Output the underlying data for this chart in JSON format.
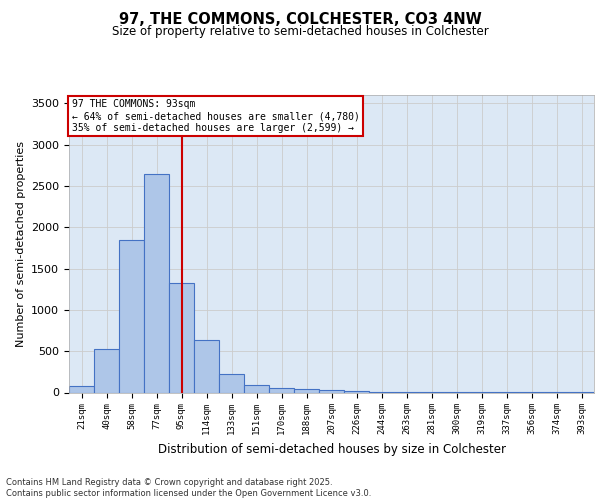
{
  "title_line1": "97, THE COMMONS, COLCHESTER, CO3 4NW",
  "title_line2": "Size of property relative to semi-detached houses in Colchester",
  "xlabel": "Distribution of semi-detached houses by size in Colchester",
  "ylabel": "Number of semi-detached properties",
  "categories": [
    "21sqm",
    "40sqm",
    "58sqm",
    "77sqm",
    "95sqm",
    "114sqm",
    "133sqm",
    "151sqm",
    "170sqm",
    "188sqm",
    "207sqm",
    "226sqm",
    "244sqm",
    "263sqm",
    "281sqm",
    "300sqm",
    "319sqm",
    "337sqm",
    "356sqm",
    "374sqm",
    "393sqm"
  ],
  "values": [
    75,
    530,
    1850,
    2650,
    1320,
    640,
    220,
    90,
    55,
    45,
    35,
    20,
    10,
    8,
    5,
    4,
    3,
    2,
    1,
    1,
    1
  ],
  "bar_color": "#aec6e8",
  "bar_edge_color": "#4472c4",
  "bar_linewidth": 0.8,
  "vline_index": 4,
  "vline_color": "#cc0000",
  "vline_linewidth": 1.5,
  "annotation_title": "97 THE COMMONS: 93sqm",
  "annotation_line1": "← 64% of semi-detached houses are smaller (4,780)",
  "annotation_line2": "35% of semi-detached houses are larger (2,599) →",
  "annotation_box_color": "#cc0000",
  "ylim": [
    0,
    3600
  ],
  "yticks": [
    0,
    500,
    1000,
    1500,
    2000,
    2500,
    3000,
    3500
  ],
  "grid_color": "#cccccc",
  "bg_color": "#dce8f5",
  "footnote_line1": "Contains HM Land Registry data © Crown copyright and database right 2025.",
  "footnote_line2": "Contains public sector information licensed under the Open Government Licence v3.0."
}
